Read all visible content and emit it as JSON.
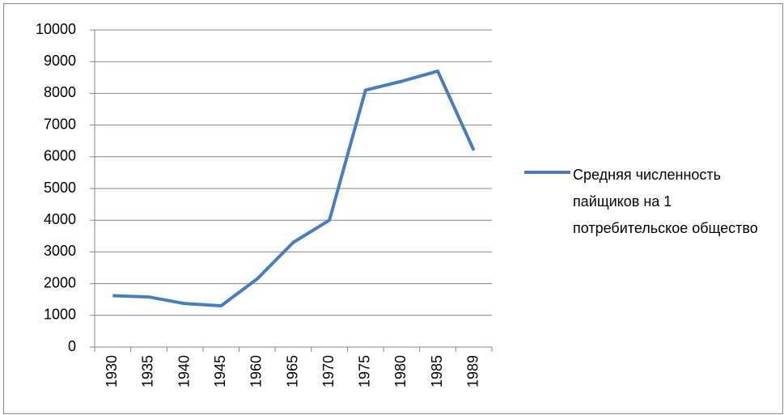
{
  "chart_data": {
    "type": "line",
    "categories": [
      "1930",
      "1935",
      "1940",
      "1945",
      "1960",
      "1965",
      "1970",
      "1975",
      "1980",
      "1985",
      "1989"
    ],
    "series": [
      {
        "name": "Средняя численность пайщиков на 1 потребительское общество",
        "color": "#4a7ebb",
        "values": [
          1620,
          1580,
          1370,
          1300,
          2150,
          3300,
          4000,
          8100,
          8380,
          8700,
          6200
        ]
      }
    ],
    "ylim": [
      0,
      10000
    ],
    "yticks": [
      0,
      1000,
      2000,
      3000,
      4000,
      5000,
      6000,
      7000,
      8000,
      9000,
      10000
    ],
    "grid": true,
    "legend": "right"
  }
}
